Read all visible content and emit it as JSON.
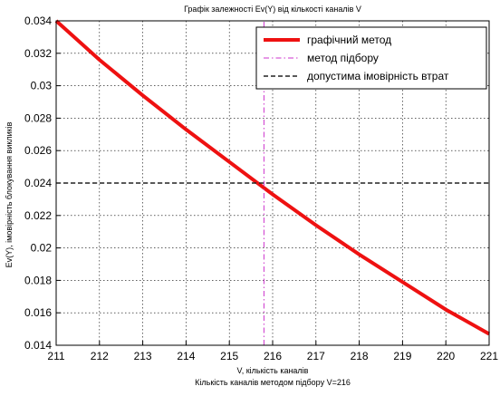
{
  "chart_data": {
    "type": "line",
    "title": "Графік залежності Ev(Y) від кількості каналів V",
    "xlabel": "V, кількість каналів",
    "caption": "Кількість каналів методом підбору V=216",
    "ylabel": "Ev(Y), імовірність блокування викликів",
    "xlim": [
      211,
      221
    ],
    "ylim": [
      0.014,
      0.034
    ],
    "xticks": [
      "211",
      "212",
      "213",
      "214",
      "215",
      "216",
      "217",
      "218",
      "219",
      "220",
      "221"
    ],
    "yticks": [
      "0.014",
      "0.016",
      "0.018",
      "0.02",
      "0.022",
      "0.024",
      "0.026",
      "0.028",
      "0.03",
      "0.032",
      "0.034"
    ],
    "grid": true,
    "legend_position": "top-right",
    "series": [
      {
        "name": "графічний метод",
        "style": "solid",
        "color": "#ee1111",
        "x": [
          211,
          212,
          213,
          214,
          215,
          216,
          217,
          218,
          219,
          220,
          221
        ],
        "y": [
          0.034,
          0.0316,
          0.0294,
          0.0273,
          0.0253,
          0.0233,
          0.0214,
          0.0196,
          0.0179,
          0.0162,
          0.0147
        ]
      },
      {
        "name": "метод підбору",
        "style": "dashdot",
        "color": "#cc33cc",
        "x": [
          215.8,
          215.8
        ],
        "y": [
          0.014,
          0.034
        ]
      },
      {
        "name": "допустима імовірність втрат",
        "style": "dashed",
        "color": "#222222",
        "x": [
          211,
          221
        ],
        "y": [
          0.024,
          0.024
        ]
      }
    ]
  }
}
